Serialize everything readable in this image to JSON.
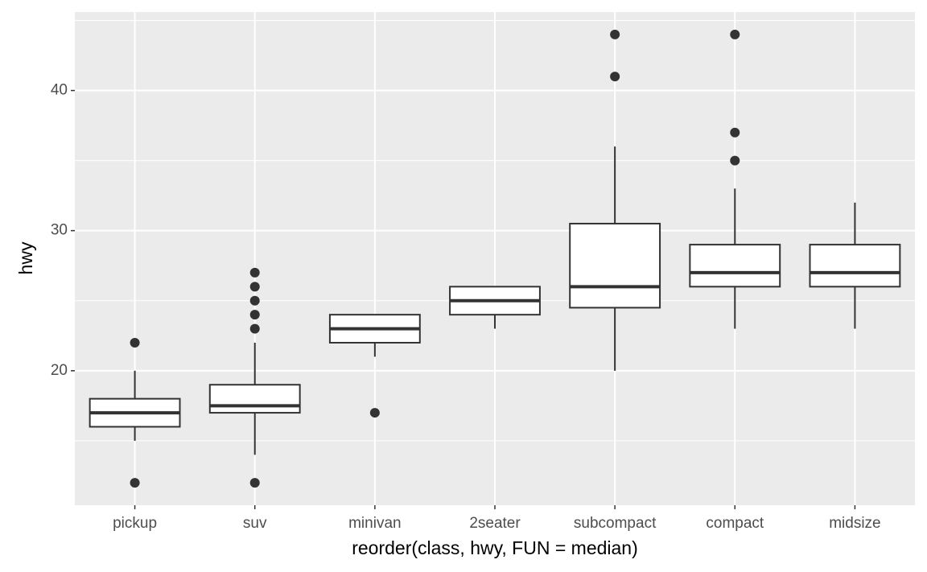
{
  "chart_data": {
    "type": "box",
    "x_label": "reorder(class, hwy, FUN = median)",
    "y_label": "hwy",
    "categories": [
      "pickup",
      "suv",
      "minivan",
      "2seater",
      "subcompact",
      "compact",
      "midsize"
    ],
    "stats": [
      {
        "min": 15,
        "q1": 16,
        "median": 17,
        "q3": 18,
        "max": 20,
        "outliers": [
          12,
          22
        ]
      },
      {
        "min": 14,
        "q1": 17,
        "median": 17.5,
        "q3": 19,
        "max": 22,
        "outliers": [
          12,
          23,
          24,
          25,
          26,
          27
        ]
      },
      {
        "min": 21,
        "q1": 22,
        "median": 23,
        "q3": 24,
        "max": 24,
        "outliers": [
          17
        ]
      },
      {
        "min": 23,
        "q1": 24,
        "median": 25,
        "q3": 26,
        "max": 26,
        "outliers": []
      },
      {
        "min": 20,
        "q1": 24.5,
        "median": 26,
        "q3": 30.5,
        "max": 36,
        "outliers": [
          41,
          44
        ]
      },
      {
        "min": 23,
        "q1": 26,
        "median": 27,
        "q3": 29,
        "max": 33,
        "outliers": [
          35,
          37,
          44
        ]
      },
      {
        "min": 23,
        "q1": 26,
        "median": 27,
        "q3": 29,
        "max": 32,
        "outliers": []
      }
    ],
    "box_fill": "#ffffff",
    "color": "#333333",
    "ylim": [
      10.4,
      45.6
    ],
    "yticks": [
      20,
      30,
      40
    ],
    "minor_yticks": [
      15,
      25,
      35,
      45
    ],
    "grid": true
  }
}
